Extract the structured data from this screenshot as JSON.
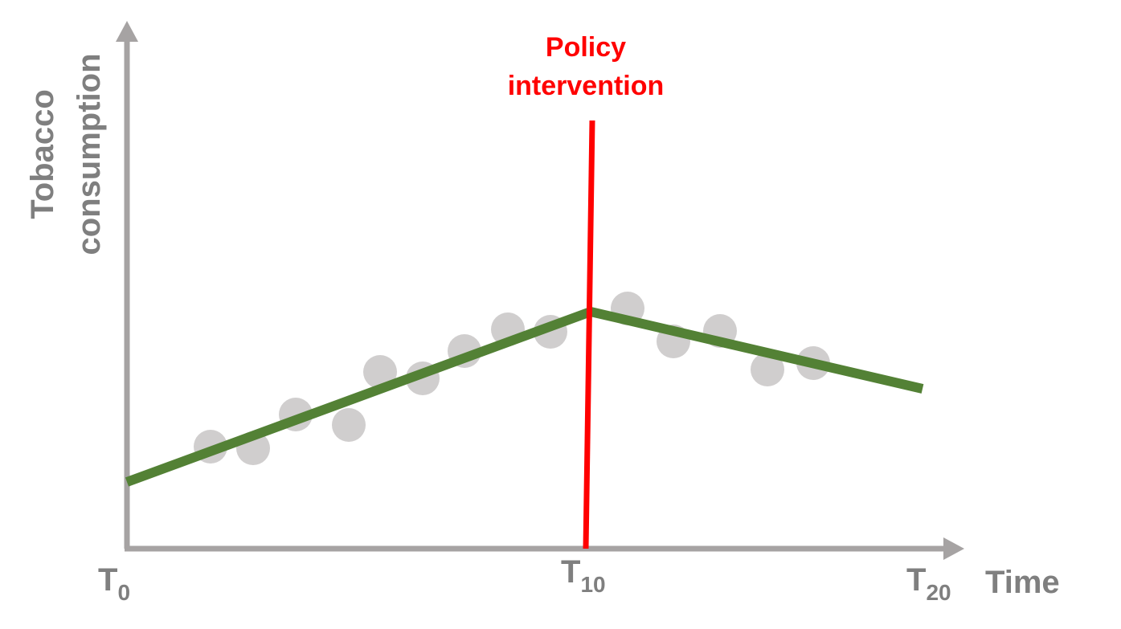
{
  "y_axis_label": [
    "Tobacco",
    "consumption"
  ],
  "x_axis_label": "Time",
  "annotation": [
    "Policy",
    "intervention"
  ],
  "ticks": [
    {
      "letter": "T",
      "subscript": "0"
    },
    {
      "letter": "T",
      "subscript": "10"
    },
    {
      "letter": "T",
      "subscript": "20"
    }
  ]
}
